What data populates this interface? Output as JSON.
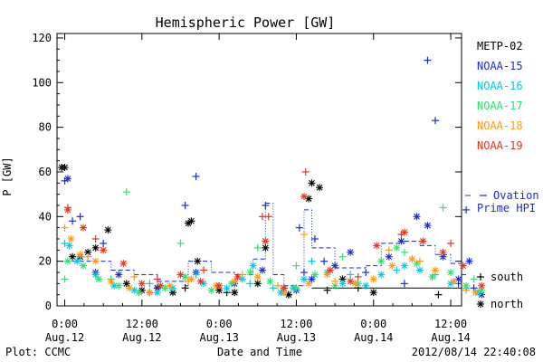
{
  "chart_data": {
    "type": "scatter",
    "title": "Hemispheric Power [GW]",
    "xlabel": "Date and Time",
    "ylabel": "P [GW]",
    "ylim": [
      0,
      122
    ],
    "xlim": [
      -0.05,
      2.57
    ],
    "x_unit": "day",
    "yticks": [
      0,
      20,
      40,
      60,
      80,
      100,
      120
    ],
    "xticks": [
      {
        "x": 0.0,
        "time": "0:00",
        "date": "Aug.12"
      },
      {
        "x": 0.5,
        "time": "12:00",
        "date": "Aug.12"
      },
      {
        "x": 1.0,
        "time": "0:00",
        "date": "Aug.13"
      },
      {
        "x": 1.5,
        "time": "12:00",
        "date": "Aug.13"
      },
      {
        "x": 2.0,
        "time": "0:00",
        "date": "Aug.14"
      },
      {
        "x": 2.5,
        "time": "12:00",
        "date": "Aug.14"
      }
    ],
    "grid": false,
    "legend_position": "right",
    "series": [
      {
        "name": "METP-02",
        "color": "#000000",
        "south": [
          [
            0.55,
            6
          ],
          [
            0.78,
            8
          ],
          [
            1.05,
            6
          ],
          [
            1.45,
            5
          ],
          [
            1.7,
            7
          ],
          [
            1.9,
            8
          ],
          [
            2.42,
            5
          ]
        ],
        "north": [
          [
            -0.02,
            62
          ],
          [
            0.0,
            62
          ],
          [
            0.05,
            22
          ],
          [
            0.1,
            22
          ],
          [
            0.15,
            24
          ],
          [
            0.2,
            26
          ],
          [
            0.28,
            34
          ],
          [
            0.4,
            10
          ],
          [
            0.5,
            7
          ],
          [
            0.6,
            8
          ],
          [
            0.7,
            6
          ],
          [
            0.8,
            37
          ],
          [
            0.82,
            38
          ],
          [
            0.86,
            20
          ],
          [
            1.0,
            7
          ],
          [
            1.1,
            6
          ],
          [
            1.25,
            10
          ],
          [
            1.3,
            26
          ],
          [
            1.45,
            5
          ],
          [
            1.58,
            48
          ],
          [
            1.6,
            55
          ],
          [
            1.65,
            53
          ],
          [
            1.8,
            12
          ],
          [
            2.0,
            6
          ]
        ]
      },
      {
        "name": "NOAA-15",
        "color": "#1a2bd6",
        "south": [
          [
            0.0,
            56
          ],
          [
            0.05,
            38
          ],
          [
            0.1,
            40
          ],
          [
            0.25,
            28
          ],
          [
            0.6,
            8
          ],
          [
            0.78,
            45
          ],
          [
            0.85,
            58
          ],
          [
            1.3,
            45
          ],
          [
            1.42,
            8
          ],
          [
            1.52,
            35
          ],
          [
            1.55,
            15
          ],
          [
            1.62,
            30
          ],
          [
            1.68,
            20
          ],
          [
            1.95,
            15
          ],
          [
            2.2,
            10
          ],
          [
            2.35,
            110
          ],
          [
            2.4,
            83
          ],
          [
            2.6,
            43
          ],
          [
            2.55,
            10
          ],
          [
            2.65,
            8
          ]
        ],
        "north": [
          [
            0.02,
            57
          ],
          [
            0.2,
            15
          ],
          [
            0.35,
            14
          ],
          [
            0.85,
            15
          ],
          [
            1.1,
            10
          ],
          [
            1.28,
            16
          ],
          [
            1.5,
            7
          ],
          [
            1.6,
            12
          ],
          [
            1.75,
            18
          ],
          [
            1.85,
            24
          ],
          [
            2.1,
            22
          ],
          [
            2.18,
            29
          ],
          [
            2.28,
            40
          ],
          [
            2.35,
            36
          ],
          [
            2.45,
            22
          ],
          [
            2.55,
            12
          ],
          [
            2.62,
            20
          ],
          [
            2.7,
            5
          ]
        ]
      },
      {
        "name": "NOAA-16",
        "color": "#00c8e8",
        "south": [
          [
            0.0,
            28
          ],
          [
            0.1,
            22
          ],
          [
            0.3,
            12
          ],
          [
            0.55,
            10
          ],
          [
            0.85,
            14
          ],
          [
            1.2,
            10
          ],
          [
            1.35,
            8
          ],
          [
            1.6,
            20
          ],
          [
            1.85,
            14
          ],
          [
            2.15,
            16
          ],
          [
            2.4,
            14
          ],
          [
            2.6,
            8
          ]
        ],
        "north": [
          [
            0.03,
            27
          ],
          [
            0.08,
            20
          ],
          [
            0.2,
            14
          ],
          [
            0.32,
            9
          ],
          [
            0.45,
            7
          ],
          [
            0.6,
            6
          ],
          [
            0.7,
            8
          ],
          [
            0.9,
            10
          ],
          [
            1.05,
            8
          ],
          [
            1.15,
            12
          ],
          [
            1.22,
            18
          ],
          [
            1.4,
            6
          ],
          [
            1.48,
            8
          ],
          [
            1.55,
            12
          ],
          [
            1.7,
            15
          ],
          [
            1.8,
            10
          ],
          [
            1.95,
            9
          ],
          [
            2.05,
            14
          ],
          [
            2.2,
            18
          ],
          [
            2.3,
            16
          ],
          [
            2.5,
            10
          ],
          [
            2.68,
            6
          ]
        ]
      },
      {
        "name": "NOAA-17",
        "color": "#30e070",
        "south": [
          [
            0.0,
            12
          ],
          [
            0.4,
            51
          ],
          [
            0.75,
            28
          ],
          [
            1.25,
            26
          ],
          [
            1.5,
            18
          ],
          [
            1.8,
            22
          ],
          [
            2.2,
            24
          ],
          [
            2.45,
            44
          ],
          [
            2.65,
            12
          ]
        ],
        "north": [
          [
            0.02,
            20
          ],
          [
            0.12,
            18
          ],
          [
            0.22,
            12
          ],
          [
            0.35,
            9
          ],
          [
            0.48,
            6
          ],
          [
            0.65,
            8
          ],
          [
            0.78,
            13
          ],
          [
            0.95,
            7
          ],
          [
            1.08,
            10
          ],
          [
            1.2,
            15
          ],
          [
            1.33,
            11
          ],
          [
            1.5,
            8
          ],
          [
            1.62,
            14
          ],
          [
            1.75,
            9
          ],
          [
            1.9,
            10
          ],
          [
            2.05,
            20
          ],
          [
            2.15,
            26
          ],
          [
            2.28,
            19
          ],
          [
            2.38,
            13
          ],
          [
            2.5,
            15
          ],
          [
            2.6,
            9
          ],
          [
            2.7,
            7
          ]
        ]
      },
      {
        "name": "NOAA-18",
        "color": "#ff9a10",
        "south": [
          [
            0.0,
            35
          ],
          [
            0.15,
            22
          ],
          [
            0.45,
            13
          ],
          [
            0.8,
            11
          ],
          [
            1.15,
            14
          ],
          [
            1.38,
            9
          ],
          [
            1.55,
            32
          ],
          [
            1.75,
            11
          ],
          [
            2.1,
            25
          ],
          [
            2.3,
            20
          ],
          [
            2.6,
            7
          ]
        ],
        "north": [
          [
            0.04,
            30
          ],
          [
            0.1,
            23
          ],
          [
            0.2,
            20
          ],
          [
            0.3,
            11
          ],
          [
            0.42,
            8
          ],
          [
            0.55,
            6
          ],
          [
            0.68,
            9
          ],
          [
            0.82,
            12
          ],
          [
            0.98,
            9
          ],
          [
            1.1,
            11
          ],
          [
            1.25,
            13
          ],
          [
            1.42,
            6
          ],
          [
            1.58,
            10
          ],
          [
            1.7,
            14
          ],
          [
            1.88,
            10
          ],
          [
            2.0,
            12
          ],
          [
            2.12,
            18
          ],
          [
            2.25,
            21
          ],
          [
            2.4,
            16
          ],
          [
            2.52,
            11
          ],
          [
            2.66,
            6
          ]
        ]
      },
      {
        "name": "NOAA-19",
        "color": "#e8321e",
        "south": [
          [
            0.02,
            44
          ],
          [
            0.2,
            30
          ],
          [
            0.6,
            12
          ],
          [
            0.9,
            16
          ],
          [
            1.28,
            40
          ],
          [
            1.32,
            40
          ],
          [
            1.56,
            60
          ],
          [
            1.9,
            13
          ],
          [
            2.18,
            32
          ],
          [
            2.5,
            28
          ]
        ],
        "north": [
          [
            0.02,
            43
          ],
          [
            0.12,
            35
          ],
          [
            0.25,
            25
          ],
          [
            0.38,
            19
          ],
          [
            0.5,
            10
          ],
          [
            0.62,
            9
          ],
          [
            0.75,
            14
          ],
          [
            0.88,
            11
          ],
          [
            1.0,
            9
          ],
          [
            1.12,
            13
          ],
          [
            1.3,
            29
          ],
          [
            1.42,
            8
          ],
          [
            1.55,
            49
          ],
          [
            1.72,
            16
          ],
          [
            1.85,
            11
          ],
          [
            2.02,
            27
          ],
          [
            2.2,
            33
          ],
          [
            2.32,
            29
          ],
          [
            2.45,
            24
          ],
          [
            2.58,
            18
          ],
          [
            2.7,
            9
          ]
        ]
      }
    ],
    "ovation": {
      "name": "Ovation Prime HPI",
      "color": "#1a2bd6",
      "x": [
        0.0,
        0.3,
        0.45,
        0.6,
        0.78,
        0.8,
        0.95,
        1.1,
        1.22,
        1.3,
        1.35,
        1.42,
        1.55,
        1.6,
        1.75,
        1.95,
        2.05,
        2.2,
        2.3,
        2.4,
        2.5,
        2.57
      ],
      "values": [
        20,
        16,
        14,
        11,
        9,
        20,
        15,
        14,
        21,
        46,
        14,
        9,
        43,
        26,
        17,
        18,
        28,
        29,
        27,
        23,
        19,
        14
      ]
    },
    "legend_markers": [
      {
        "symbol": "+",
        "label": "south"
      },
      {
        "symbol": "*",
        "label": "north"
      }
    ],
    "footer_left": "Plot: CCMC",
    "footer_right": "2012/08/14 22:40:08"
  }
}
